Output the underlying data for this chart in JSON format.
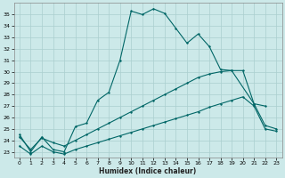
{
  "xlabel": "Humidex (Indice chaleur)",
  "background_color": "#cce9e9",
  "grid_color": "#aacfcf",
  "line_color": "#006666",
  "xlim": [
    -0.5,
    23.5
  ],
  "ylim": [
    22.5,
    36.0
  ],
  "xticks": [
    0,
    1,
    2,
    3,
    4,
    5,
    6,
    7,
    8,
    9,
    10,
    11,
    12,
    13,
    14,
    15,
    16,
    17,
    18,
    19,
    20,
    21,
    22,
    23
  ],
  "yticks": [
    23,
    24,
    25,
    26,
    27,
    28,
    29,
    30,
    31,
    32,
    33,
    34,
    35
  ],
  "series1_x": [
    0,
    1,
    2,
    3,
    4,
    5,
    6,
    7,
    8,
    9,
    10,
    11,
    12,
    13,
    14,
    15,
    16,
    17,
    18,
    19,
    21,
    22
  ],
  "series1_y": [
    24.5,
    23.0,
    24.3,
    23.2,
    23.0,
    25.2,
    25.5,
    27.5,
    28.2,
    31.0,
    35.3,
    35.0,
    35.5,
    35.1,
    33.8,
    32.5,
    33.3,
    32.2,
    30.2,
    30.1,
    27.2,
    27.0
  ],
  "series2_x": [
    0,
    1,
    2,
    3,
    4,
    5,
    6,
    7,
    8,
    9,
    10,
    11,
    12,
    13,
    14,
    15,
    16,
    17,
    18,
    19,
    20,
    21,
    22,
    23
  ],
  "series2_y": [
    24.3,
    23.2,
    24.2,
    23.8,
    23.5,
    24.0,
    24.5,
    25.0,
    25.5,
    26.0,
    26.5,
    27.0,
    27.5,
    28.0,
    28.5,
    29.0,
    29.5,
    29.8,
    30.0,
    30.1,
    30.1,
    27.2,
    25.3,
    25.0
  ],
  "series3_x": [
    0,
    1,
    2,
    3,
    4,
    5,
    6,
    7,
    8,
    9,
    10,
    11,
    12,
    13,
    14,
    15,
    16,
    17,
    18,
    19,
    20,
    21,
    22,
    23
  ],
  "series3_y": [
    23.5,
    22.8,
    23.5,
    23.0,
    22.8,
    23.2,
    23.5,
    23.8,
    24.1,
    24.4,
    24.7,
    25.0,
    25.3,
    25.6,
    25.9,
    26.2,
    26.5,
    26.9,
    27.2,
    27.5,
    27.8,
    27.0,
    25.0,
    24.8
  ],
  "markersize": 2.0,
  "linewidth": 0.8,
  "tick_fontsize": 4.5,
  "xlabel_fontsize": 5.5
}
